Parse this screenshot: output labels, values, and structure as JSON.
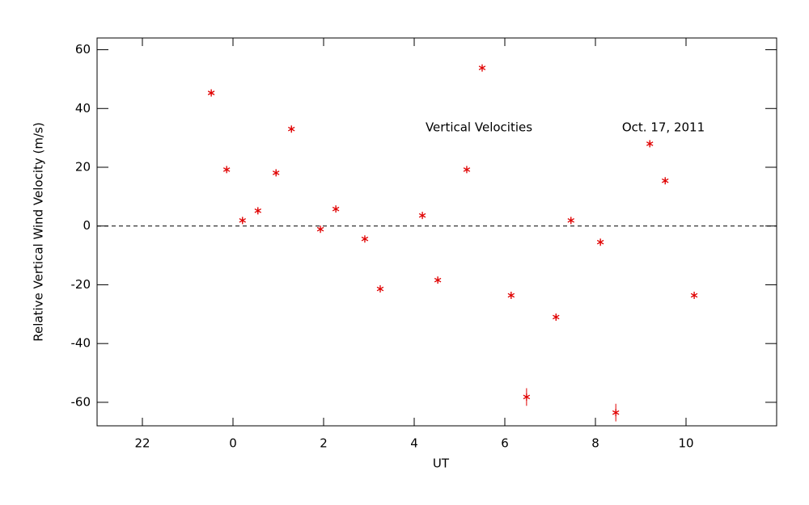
{
  "chart_data": {
    "type": "scatter",
    "xlabel": "UT",
    "ylabel": "Relative Vertical Wind Velocity (m/s)",
    "annotations": [
      "Vertical Velocities",
      "Oct. 17, 2011"
    ],
    "x": [
      -0.48,
      -0.14,
      0.21,
      0.55,
      0.95,
      1.29,
      1.93,
      2.27,
      2.91,
      3.25,
      4.18,
      4.52,
      5.16,
      5.5,
      6.14,
      6.48,
      7.13,
      7.46,
      8.11,
      8.45,
      9.2,
      9.54,
      10.18
    ],
    "values": [
      45.3,
      19.2,
      1.9,
      5.2,
      18.1,
      33.0,
      -1.1,
      5.8,
      -4.4,
      -21.4,
      3.6,
      -18.4,
      19.2,
      53.8,
      -23.6,
      -58.2,
      -31.0,
      1.9,
      -5.5,
      -63.5,
      28.0,
      15.4,
      -23.6
    ],
    "errors": [
      1,
      1,
      1,
      1,
      1,
      1,
      1,
      1,
      1,
      1,
      1,
      1,
      1,
      1,
      1,
      3,
      1,
      1,
      1,
      3,
      1,
      1,
      1
    ],
    "color": "#e00000",
    "xlim": [
      -3,
      12
    ],
    "xticks": [
      {
        "value": -2,
        "label": "22"
      },
      0,
      2,
      4,
      6,
      8,
      10
    ],
    "ylim": [
      -68,
      64
    ],
    "yticks": [
      -60,
      -40,
      -20,
      0,
      20,
      40,
      60
    ],
    "zero_line": true
  }
}
